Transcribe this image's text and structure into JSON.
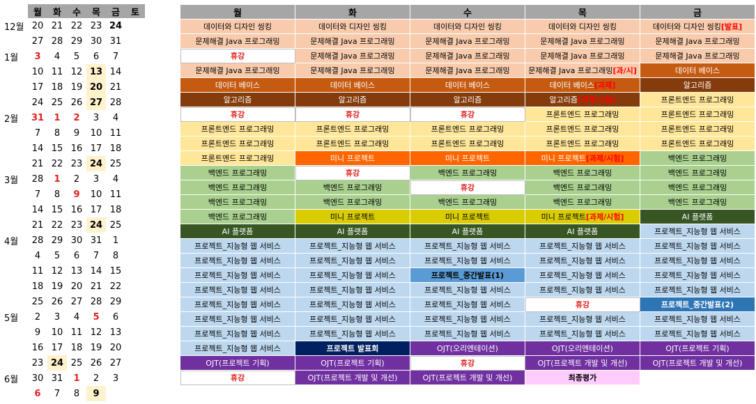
{
  "calendar": {
    "headers": [
      "월",
      "화",
      "수",
      "목",
      "금",
      "토"
    ],
    "weeks": [
      {
        "month": "12월",
        "days": [
          "20",
          "21",
          "22",
          "23",
          "24"
        ],
        "styles": [
          "",
          "",
          "",
          "",
          "bold"
        ]
      },
      {
        "month": "",
        "days": [
          "27",
          "28",
          "29",
          "30",
          "31"
        ],
        "styles": [
          "",
          "",
          "",
          "",
          ""
        ]
      },
      {
        "month": "1월",
        "days": [
          "3",
          "4",
          "5",
          "6",
          "7"
        ],
        "styles": [
          "red",
          "",
          "",
          "",
          ""
        ]
      },
      {
        "month": "",
        "days": [
          "10",
          "11",
          "12",
          "13",
          "14"
        ],
        "styles": [
          "",
          "",
          "",
          "hl",
          ""
        ]
      },
      {
        "month": "",
        "days": [
          "17",
          "18",
          "19",
          "20",
          "21"
        ],
        "styles": [
          "",
          "",
          "",
          "hl",
          ""
        ]
      },
      {
        "month": "",
        "days": [
          "24",
          "25",
          "26",
          "27",
          "28"
        ],
        "styles": [
          "",
          "",
          "",
          "hl",
          ""
        ]
      },
      {
        "month": "2월",
        "days": [
          "31",
          "1",
          "2",
          "3",
          "4"
        ],
        "styles": [
          "red",
          "red",
          "red",
          "",
          ""
        ]
      },
      {
        "month": "",
        "days": [
          "7",
          "8",
          "9",
          "10",
          "11"
        ],
        "styles": [
          "",
          "",
          "",
          "",
          ""
        ]
      },
      {
        "month": "",
        "days": [
          "14",
          "15",
          "16",
          "17",
          "18"
        ],
        "styles": [
          "",
          "",
          "",
          "",
          ""
        ]
      },
      {
        "month": "",
        "days": [
          "21",
          "22",
          "23",
          "24",
          "25"
        ],
        "styles": [
          "",
          "",
          "",
          "hl",
          ""
        ]
      },
      {
        "month": "3월",
        "days": [
          "28",
          "1",
          "2",
          "3",
          "4"
        ],
        "styles": [
          "",
          "red",
          "",
          "",
          ""
        ]
      },
      {
        "month": "",
        "days": [
          "7",
          "8",
          "9",
          "10",
          "11"
        ],
        "styles": [
          "",
          "",
          "red",
          "",
          ""
        ]
      },
      {
        "month": "",
        "days": [
          "14",
          "15",
          "16",
          "17",
          "18"
        ],
        "styles": [
          "",
          "",
          "",
          "",
          ""
        ]
      },
      {
        "month": "",
        "days": [
          "21",
          "22",
          "23",
          "24",
          "25"
        ],
        "styles": [
          "",
          "",
          "",
          "hl",
          ""
        ]
      },
      {
        "month": "4월",
        "days": [
          "28",
          "29",
          "30",
          "31",
          "1"
        ],
        "styles": [
          "",
          "",
          "",
          "",
          ""
        ]
      },
      {
        "month": "",
        "days": [
          "4",
          "5",
          "6",
          "7",
          "8"
        ],
        "styles": [
          "",
          "",
          "",
          "",
          ""
        ]
      },
      {
        "month": "",
        "days": [
          "11",
          "12",
          "13",
          "14",
          "15"
        ],
        "styles": [
          "",
          "",
          "",
          "",
          ""
        ]
      },
      {
        "month": "",
        "days": [
          "18",
          "19",
          "20",
          "21",
          "22"
        ],
        "styles": [
          "",
          "",
          "",
          "",
          ""
        ]
      },
      {
        "month": "",
        "days": [
          "25",
          "26",
          "27",
          "28",
          "29"
        ],
        "styles": [
          "",
          "",
          "",
          "",
          ""
        ]
      },
      {
        "month": "5월",
        "days": [
          "2",
          "3",
          "4",
          "5",
          "6"
        ],
        "styles": [
          "",
          "",
          "",
          "red",
          ""
        ]
      },
      {
        "month": "",
        "days": [
          "9",
          "10",
          "11",
          "12",
          "13"
        ],
        "styles": [
          "",
          "",
          "",
          "",
          ""
        ]
      },
      {
        "month": "",
        "days": [
          "16",
          "17",
          "18",
          "19",
          "20"
        ],
        "styles": [
          "",
          "",
          "",
          "",
          ""
        ]
      },
      {
        "month": "",
        "days": [
          "23",
          "24",
          "25",
          "26",
          "27"
        ],
        "styles": [
          "",
          "hl",
          "",
          "",
          ""
        ]
      },
      {
        "month": "6월",
        "days": [
          "30",
          "31",
          "1",
          "2",
          "3"
        ],
        "styles": [
          "",
          "",
          "red",
          "",
          ""
        ]
      },
      {
        "month": "",
        "days": [
          "6",
          "7",
          "8",
          "9",
          ""
        ],
        "styles": [
          "red",
          "",
          "",
          "hl",
          ""
        ]
      }
    ]
  },
  "schedule": {
    "headers": [
      "월",
      "화",
      "수",
      "목",
      "금"
    ],
    "rows": [
      [
        {
          "text": "데이터와 디자인 씽킹",
          "c": "peach"
        },
        {
          "text": "데이터와 디자인 씽킹",
          "c": "peach"
        },
        {
          "text": "데이터와 디자인 씽킹",
          "c": "peach"
        },
        {
          "text": "데이터와 디자인 씽킹",
          "c": "peach"
        },
        {
          "text": "데이터와 디자인 씽킹",
          "c": "peach",
          "tag": "[발표]"
        }
      ],
      [
        {
          "text": "문제해결 Java 프로그래밍",
          "c": "peach"
        },
        {
          "text": "문제해결 Java 프로그래밍",
          "c": "peach"
        },
        {
          "text": "문제해결 Java 프로그래밍",
          "c": "peach"
        },
        {
          "text": "문제해결 Java 프로그래밍",
          "c": "peach"
        },
        {
          "text": "문제해결 Java 프로그래밍",
          "c": "peach"
        }
      ],
      [
        {
          "text": "휴강",
          "c": "white",
          "t": "red"
        },
        {
          "text": "문제해결 Java 프로그래밍",
          "c": "peach"
        },
        {
          "text": "문제해결 Java 프로그래밍",
          "c": "peach"
        },
        {
          "text": "문제해결 Java 프로그래밍",
          "c": "peach"
        },
        {
          "text": "문제해결 Java 프로그래밍",
          "c": "peach"
        }
      ],
      [
        {
          "text": "문제해결 Java 프로그래밍",
          "c": "peach"
        },
        {
          "text": "문제해결 Java 프로그래밍",
          "c": "peach"
        },
        {
          "text": "문제해결 Java 프로그래밍",
          "c": "peach"
        },
        {
          "text": "문제해결 Java 프로그래밍",
          "c": "peach",
          "tag": "[과/시]"
        },
        {
          "text": "데이터 베이스",
          "c": "orange"
        }
      ],
      [
        {
          "text": "데이터 베이스",
          "c": "orange"
        },
        {
          "text": "데이터 베이스",
          "c": "orange"
        },
        {
          "text": "데이터 베이스",
          "c": "orange"
        },
        {
          "text": "데이터 베이스",
          "c": "orange",
          "tag": "[과제]"
        },
        {
          "text": "알고리즘",
          "c": "brown"
        }
      ],
      [
        {
          "text": "알고리즘",
          "c": "brown"
        },
        {
          "text": "알고리즘",
          "c": "brown"
        },
        {
          "text": "알고리즘",
          "c": "brown"
        },
        {
          "text": "알고리즘",
          "c": "brown",
          "tag": "[과제/시험]"
        },
        {
          "text": "프론트엔드 프로그래밍",
          "c": "yellow"
        }
      ],
      [
        {
          "text": "휴강",
          "c": "white",
          "t": "red"
        },
        {
          "text": "휴강",
          "c": "white",
          "t": "red"
        },
        {
          "text": "휴강",
          "c": "white",
          "t": "red"
        },
        {
          "text": "프론트엔드 프로그래밍",
          "c": "yellow"
        },
        {
          "text": "프론트엔드 프로그래밍",
          "c": "yellow"
        }
      ],
      [
        {
          "text": "프론트엔드 프로그래밍",
          "c": "yellow"
        },
        {
          "text": "프론트엔드 프로그래밍",
          "c": "yellow"
        },
        {
          "text": "프론트엔드 프로그래밍",
          "c": "yellow"
        },
        {
          "text": "프론트엔드 프로그래밍",
          "c": "yellow"
        },
        {
          "text": "프론트엔드 프로그래밍",
          "c": "yellow"
        }
      ],
      [
        {
          "text": "프론트엔드 프로그래밍",
          "c": "yellow"
        },
        {
          "text": "프론트엔드 프로그래밍",
          "c": "yellow"
        },
        {
          "text": "프론트엔드 프로그래밍",
          "c": "yellow"
        },
        {
          "text": "프론트엔드 프로그래밍",
          "c": "yellow"
        },
        {
          "text": "프론트엔드 프로그래밍",
          "c": "yellow"
        }
      ],
      [
        {
          "text": "프론트엔드 프로그래밍",
          "c": "yellow"
        },
        {
          "text": "미니 프로젝트",
          "c": "bright"
        },
        {
          "text": "미니 프로젝트",
          "c": "bright"
        },
        {
          "text": "미니 프로젝트",
          "c": "bright",
          "tag": "[과제/시험]"
        },
        {
          "text": "백엔드 프로그래밍",
          "c": "green"
        }
      ],
      [
        {
          "text": "백엔드 프로그래밍",
          "c": "green"
        },
        {
          "text": "휴강",
          "c": "white",
          "t": "red"
        },
        {
          "text": "백엔드 프로그래밍",
          "c": "green"
        },
        {
          "text": "백엔드 프로그래밍",
          "c": "green"
        },
        {
          "text": "백엔드 프로그래밍",
          "c": "green"
        }
      ],
      [
        {
          "text": "백엔드 프로그래밍",
          "c": "green"
        },
        {
          "text": "백엔드 프로그래밍",
          "c": "green"
        },
        {
          "text": "휴강",
          "c": "white",
          "t": "red"
        },
        {
          "text": "백엔드 프로그래밍",
          "c": "green"
        },
        {
          "text": "백엔드 프로그래밍",
          "c": "green"
        }
      ],
      [
        {
          "text": "백엔드 프로그래밍",
          "c": "green"
        },
        {
          "text": "백엔드 프로그래밍",
          "c": "green"
        },
        {
          "text": "백엔드 프로그래밍",
          "c": "green"
        },
        {
          "text": "백엔드 프로그래밍",
          "c": "green"
        },
        {
          "text": "백엔드 프로그래밍",
          "c": "green"
        }
      ],
      [
        {
          "text": "백엔드 프로그래밍",
          "c": "green"
        },
        {
          "text": "미니 프로젝트",
          "c": "olive"
        },
        {
          "text": "미니 프로젝트",
          "c": "olive"
        },
        {
          "text": "미니 프로젝트",
          "c": "olive",
          "tag": "[과제/시험]"
        },
        {
          "text": "AI 플랫폼",
          "c": "dkgreen"
        }
      ],
      [
        {
          "text": "AI 플랫폼",
          "c": "dkgreen"
        },
        {
          "text": "AI 플랫폼",
          "c": "dkgreen"
        },
        {
          "text": "AI 플랫폼",
          "c": "dkgreen"
        },
        {
          "text": "AI 플랫폼",
          "c": "dkgreen"
        },
        {
          "text": "프로젝트_지능형 웹 서비스",
          "c": "blue"
        }
      ],
      [
        {
          "text": "프로젝트_지능형 웹 서비스",
          "c": "blue"
        },
        {
          "text": "프로젝트_지능형 웹 서비스",
          "c": "blue"
        },
        {
          "text": "프로젝트_지능형 웹 서비스",
          "c": "blue"
        },
        {
          "text": "프로젝트_지능형 웹 서비스",
          "c": "blue"
        },
        {
          "text": "프로젝트_지능형 웹 서비스",
          "c": "blue"
        }
      ],
      [
        {
          "text": "프로젝트_지능형 웹 서비스",
          "c": "blue"
        },
        {
          "text": "프로젝트_지능형 웹 서비스",
          "c": "blue"
        },
        {
          "text": "프로젝트_지능형 웹 서비스",
          "c": "blue"
        },
        {
          "text": "프로젝트_지능형 웹 서비스",
          "c": "blue"
        },
        {
          "text": "프로젝트_지능형 웹 서비스",
          "c": "blue"
        }
      ],
      [
        {
          "text": "프로젝트_지능형 웹 서비스",
          "c": "blue"
        },
        {
          "text": "프로젝트_지능형 웹 서비스",
          "c": "blue"
        },
        {
          "text": "프로젝트_중간발표(1)",
          "c": "midblue"
        },
        {
          "text": "프로젝트_지능형 웹 서비스",
          "c": "blue"
        },
        {
          "text": "프로젝트_지능형 웹 서비스",
          "c": "blue"
        }
      ],
      [
        {
          "text": "프로젝트_지능형 웹 서비스",
          "c": "blue"
        },
        {
          "text": "프로젝트_지능형 웹 서비스",
          "c": "blue"
        },
        {
          "text": "프로젝트_지능형 웹 서비스",
          "c": "blue"
        },
        {
          "text": "프로젝트_지능형 웹 서비스",
          "c": "blue"
        },
        {
          "text": "프로젝트_지능형 웹 서비스",
          "c": "blue"
        }
      ],
      [
        {
          "text": "프로젝트_지능형 웹 서비스",
          "c": "blue"
        },
        {
          "text": "프로젝트_지능형 웹 서비스",
          "c": "blue"
        },
        {
          "text": "프로젝트_지능형 웹 서비스",
          "c": "blue"
        },
        {
          "text": "휴강",
          "c": "white",
          "t": "red"
        },
        {
          "text": "프로젝트_중간발표(2)",
          "c": "steel"
        }
      ],
      [
        {
          "text": "프로젝트_지능형 웹 서비스",
          "c": "blue"
        },
        {
          "text": "프로젝트_지능형 웹 서비스",
          "c": "blue"
        },
        {
          "text": "프로젝트_지능형 웹 서비스",
          "c": "blue"
        },
        {
          "text": "프로젝트_지능형 웹 서비스",
          "c": "blue"
        },
        {
          "text": "프로젝트_지능형 웹 서비스",
          "c": "blue"
        }
      ],
      [
        {
          "text": "프로젝트_지능형 웹 서비스",
          "c": "blue"
        },
        {
          "text": "프로젝트_지능형 웹 서비스",
          "c": "blue"
        },
        {
          "text": "프로젝트_지능형 웹 서비스",
          "c": "blue"
        },
        {
          "text": "프로젝트_지능형 웹 서비스",
          "c": "blue"
        },
        {
          "text": "프로젝트_지능형 웹 서비스",
          "c": "blue"
        }
      ],
      [
        {
          "text": "프로젝트_지능형 웹 서비스",
          "c": "blue"
        },
        {
          "text": "프로젝트 발표회",
          "c": "navy"
        },
        {
          "text": "OJT(오리엔테이션)",
          "c": "purple"
        },
        {
          "text": "OJT(오리엔테이션)",
          "c": "purple"
        },
        {
          "text": "OJT(프로젝트 기획)",
          "c": "purple"
        }
      ],
      [
        {
          "text": "OJT(프로젝트 기획)",
          "c": "purple"
        },
        {
          "text": "OJT(프로젝트 기획)",
          "c": "purple"
        },
        {
          "text": "휴강",
          "c": "white",
          "t": "red"
        },
        {
          "text": "OJT(프로젝트 개발 및 개선)",
          "c": "purple"
        },
        {
          "text": "OJT(프로젝트 개발 및 개선)",
          "c": "purple"
        }
      ],
      [
        {
          "text": "휴강",
          "c": "white",
          "t": "red"
        },
        {
          "text": "OJT(프로젝트 개발 및 개선)",
          "c": "purple"
        },
        {
          "text": "OJT(프로젝트 개발 및 개선)",
          "c": "purple"
        },
        {
          "text": "최종평가",
          "c": "pink"
        },
        {
          "text": "",
          "c": "none"
        }
      ]
    ]
  }
}
